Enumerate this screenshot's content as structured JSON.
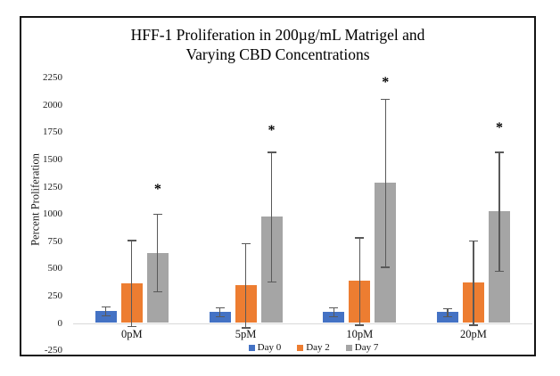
{
  "title": {
    "line1": "HFF-1 Proliferation in 200µg/mL Matrigel and",
    "line2": "Varying CBD Concentrations"
  },
  "y_axis_title": "Percent Proliferation",
  "legend": {
    "items": [
      {
        "label": "Day 0",
        "color": "#4472C4"
      },
      {
        "label": "Day 2",
        "color": "#ED7D31"
      },
      {
        "label": "Day 7",
        "color": "#A5A5A5"
      }
    ]
  },
  "chart_data": {
    "type": "bar",
    "title": "HFF-1 Proliferation in 200µg/mL Matrigel and Varying CBD Concentrations",
    "xlabel": "",
    "ylabel": "Percent Proliferation",
    "categories": [
      "0pM",
      "5pM",
      "10pM",
      "20pM"
    ],
    "series": [
      {
        "name": "Day 0",
        "color": "#4472C4",
        "values": [
          110,
          105,
          105,
          100
        ],
        "error_bars": [
          40,
          40,
          40,
          35
        ]
      },
      {
        "name": "Day 2",
        "color": "#ED7D31",
        "values": [
          365,
          345,
          385,
          370
        ],
        "error_bars": [
          395,
          385,
          400,
          385
        ]
      },
      {
        "name": "Day 7",
        "color": "#A5A5A5",
        "values": [
          645,
          975,
          1285,
          1025
        ],
        "error_bars": [
          355,
          595,
          770,
          545
        ]
      }
    ],
    "annotations": [
      {
        "text": "*",
        "category": "0pM",
        "above_series": "Day 7",
        "y": 1230
      },
      {
        "text": "*",
        "category": "5pM",
        "above_series": "Day 7",
        "y": 1770
      },
      {
        "text": "*",
        "category": "10pM",
        "above_series": "Day 7",
        "y": 2210
      },
      {
        "text": "*",
        "category": "20pM",
        "above_series": "Day 7",
        "y": 1790
      }
    ],
    "ylim": [
      -250,
      2250
    ],
    "yticks": [
      2250,
      2000,
      1750,
      1500,
      1250,
      1000,
      750,
      500,
      250,
      0,
      -250
    ],
    "grid": false,
    "legend_position": "bottom",
    "error_bar_color": "#595959",
    "axis_line_color": "#D9D9D9"
  }
}
